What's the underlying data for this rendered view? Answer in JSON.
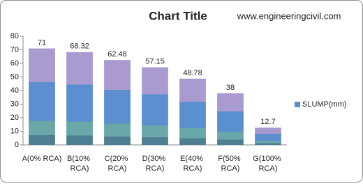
{
  "chart_data": {
    "type": "bar",
    "title": "Chart Title",
    "annotation": "www.engineeringcivil.com",
    "categories": [
      "A(0% RCA)",
      "B(10% RCA)",
      "C(20% RCA)",
      "D(30% RCA)",
      "E(40% RCA)",
      "F(50% RCA)",
      "G(100% RCA)"
    ],
    "series": [
      {
        "name": "SLUMP(mm)",
        "color": "#5b8fd0",
        "values": [
          71,
          68.32,
          62.48,
          57.15,
          48.78,
          38,
          12.7
        ]
      }
    ],
    "ylim": [
      0,
      80
    ],
    "yticks": [
      0,
      10,
      20,
      30,
      40,
      50,
      60,
      70,
      80
    ],
    "grid": false,
    "legend": "right"
  }
}
